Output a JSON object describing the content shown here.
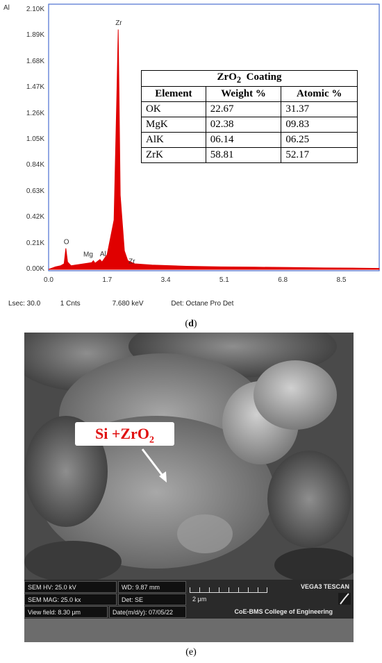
{
  "chart_data": {
    "type": "line",
    "corner_label": "Al",
    "y_ticks": [
      "0.00K",
      "0.21K",
      "0.42K",
      "0.63K",
      "0.84K",
      "1.05K",
      "1.26K",
      "1.47K",
      "1.68K",
      "1.89K",
      "2.10K"
    ],
    "x_ticks": [
      "0.0",
      "1.7",
      "3.4",
      "5.1",
      "6.8",
      "8.5"
    ],
    "ylim": [
      0,
      2100
    ],
    "xlim": [
      0,
      9.6
    ],
    "series": [
      {
        "color": "#e00000",
        "x": [
          0.0,
          0.2,
          0.35,
          0.45,
          0.5,
          0.55,
          0.65,
          0.9,
          1.25,
          1.3,
          1.35,
          1.49,
          1.55,
          1.7,
          1.9,
          1.98,
          2.02,
          2.04,
          2.08,
          2.2,
          2.3,
          2.5,
          3.0,
          4.0,
          5.0,
          6.0,
          7.0,
          8.0,
          9.0,
          9.6
        ],
        "y": [
          0,
          20,
          30,
          45,
          170,
          60,
          30,
          40,
          55,
          70,
          50,
          80,
          60,
          120,
          400,
          1400,
          1940,
          1500,
          600,
          150,
          70,
          45,
          35,
          25,
          20,
          18,
          15,
          12,
          10,
          8
        ]
      }
    ],
    "peak_labels": [
      {
        "text": "Zr",
        "x": 2.04,
        "y": 1940
      },
      {
        "text": "O",
        "x": 0.5,
        "y": 170
      },
      {
        "text": "Mg",
        "x": 1.25,
        "y": 70
      },
      {
        "text": "Al",
        "x": 1.49,
        "y": 80
      },
      {
        "text": "Zr",
        "x": 2.2,
        "y": 150
      }
    ],
    "status": {
      "lsec": "Lsec: 30.0",
      "cnts": "1 Cnts",
      "kev": "7.680 keV",
      "det": "Det: Octane Pro Det"
    }
  },
  "table": {
    "title_main": "ZrO",
    "title_sub": "2",
    "title_rest": "Coating",
    "headers": [
      "Element",
      "Weight %",
      "Atomic %"
    ],
    "rows": [
      [
        "OK",
        "22.67",
        "31.37"
      ],
      [
        "MgK",
        "02.38",
        "09.83"
      ],
      [
        "AlK",
        "06.14",
        "06.25"
      ],
      [
        "ZrK",
        "58.81",
        "52.17"
      ]
    ]
  },
  "captions": {
    "d": "d",
    "e": "e"
  },
  "sem": {
    "label_main": "Si +ZrO",
    "label_sub": "2",
    "info": {
      "hv": "SEM HV: 25.0 kV",
      "wd": "WD: 9.87 mm",
      "brand": "VEGA3 TESCAN",
      "mag": "SEM MAG: 25.0 kx",
      "det": "Det: SE",
      "scale": "2 μm",
      "field": "View field: 8.30 μm",
      "date": "Date(m/d/y): 07/05/22",
      "org": "CoE-BMS College of Engineering"
    }
  }
}
